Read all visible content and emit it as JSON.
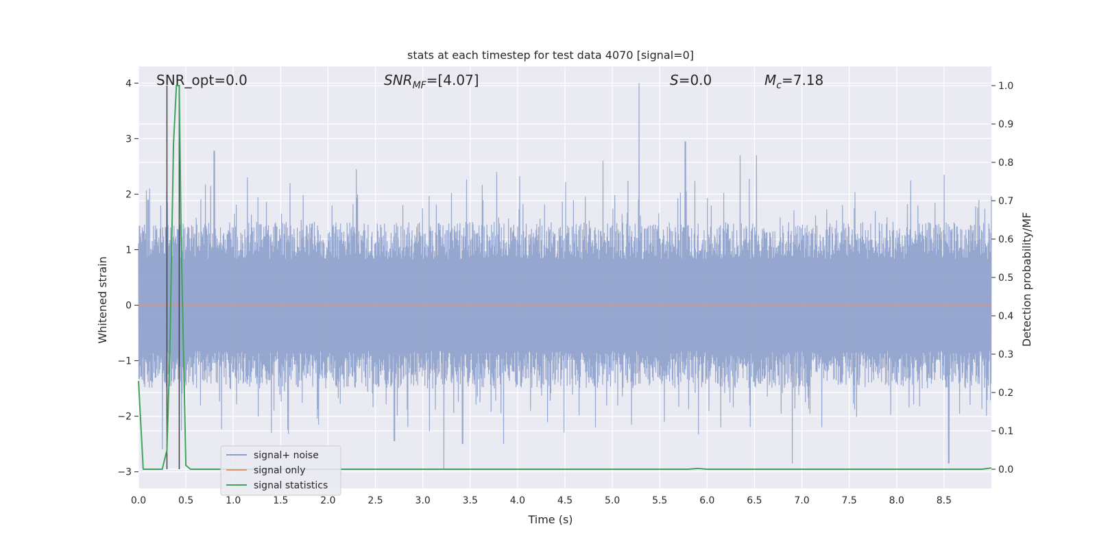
{
  "chart_data": {
    "type": "line",
    "title": "stats at each timestep for test data 4070 [signal=0]",
    "xlabel": "Time (s)",
    "ylabel_left": "Whitened strain",
    "ylabel_right": "Detection probability/MF",
    "xlim": [
      0.0,
      9.0
    ],
    "ylim_left": [
      -3.3,
      4.3
    ],
    "ylim_right": [
      -0.05,
      1.05
    ],
    "x_ticks": [
      "0.0",
      "0.5",
      "1.0",
      "1.5",
      "2.0",
      "2.5",
      "3.0",
      "3.5",
      "4.0",
      "4.5",
      "5.0",
      "5.5",
      "6.0",
      "6.5",
      "7.0",
      "7.5",
      "8.0",
      "8.5"
    ],
    "y_ticks_left": [
      "−3",
      "−2",
      "−1",
      "0",
      "1",
      "2",
      "3",
      "4"
    ],
    "y_ticks_right": [
      "0.0",
      "0.1",
      "0.2",
      "0.3",
      "0.4",
      "0.5",
      "0.6",
      "0.7",
      "0.8",
      "0.9",
      "1.0"
    ],
    "annotations": {
      "snr_opt": "SNR_opt=0.0",
      "snr_mf_main": "SNR",
      "snr_mf_sub": "MF",
      "snr_mf_value": "=[4.07]",
      "s_symbol": "S",
      "s_value": "=0.0",
      "mc_main": "M",
      "mc_sub": "c",
      "mc_value": "=7.18"
    },
    "legend": [
      "signal+ noise",
      "signal only",
      "signal statistics"
    ],
    "legend_placement": "lower-left",
    "colors": {
      "signal_noise": "#8da0cb",
      "signal_only": "#e5926b",
      "signal_statistics": "#3fa45b",
      "vertical_markers": "#404040",
      "axes_bg": "#eaeaf2",
      "grid": "#ffffff"
    },
    "series": [
      {
        "name": "signal+ noise",
        "axis": "left",
        "envelope_description_x": [
          0.0,
          0.5,
          1.0,
          1.5,
          2.0,
          2.5,
          3.0,
          3.5,
          4.0,
          4.5,
          5.0,
          5.5,
          6.0,
          6.5,
          7.0,
          7.5,
          8.0,
          8.5,
          9.0
        ],
        "typical_upper": 1.5,
        "typical_lower": -1.5,
        "peaks": [
          {
            "x": 0.1,
            "y": 1.9
          },
          {
            "x": 0.12,
            "y": 2.1
          },
          {
            "x": 0.3,
            "y": 2.05
          },
          {
            "x": 0.8,
            "y": 2.78
          },
          {
            "x": 1.15,
            "y": 2.3
          },
          {
            "x": 1.6,
            "y": 2.2
          },
          {
            "x": 2.3,
            "y": 2.45
          },
          {
            "x": 3.78,
            "y": 2.4
          },
          {
            "x": 4.9,
            "y": 2.6
          },
          {
            "x": 5.28,
            "y": 4.0
          },
          {
            "x": 5.77,
            "y": 2.95
          },
          {
            "x": 6.35,
            "y": 2.7
          },
          {
            "x": 6.52,
            "y": 2.7
          },
          {
            "x": 8.15,
            "y": 2.25
          },
          {
            "x": 8.5,
            "y": 2.35
          }
        ],
        "troughs": [
          {
            "x": 0.25,
            "y": -2.6
          },
          {
            "x": 1.4,
            "y": -2.3
          },
          {
            "x": 1.9,
            "y": -2.15
          },
          {
            "x": 2.7,
            "y": -2.45
          },
          {
            "x": 3.22,
            "y": -2.95
          },
          {
            "x": 3.42,
            "y": -2.5
          },
          {
            "x": 3.85,
            "y": -2.5
          },
          {
            "x": 5.2,
            "y": -2.15
          },
          {
            "x": 5.55,
            "y": -2.1
          },
          {
            "x": 6.9,
            "y": -2.85
          },
          {
            "x": 8.55,
            "y": -2.85
          }
        ]
      },
      {
        "name": "signal only",
        "axis": "left",
        "x": [
          0.0,
          9.0
        ],
        "y": [
          0.0,
          0.0
        ]
      },
      {
        "name": "signal statistics",
        "axis": "right",
        "x": [
          0.0,
          0.05,
          0.25,
          0.3,
          0.33,
          0.37,
          0.4,
          0.43,
          0.45,
          0.5,
          0.55,
          5.8,
          5.9,
          6.0,
          8.9,
          9.0
        ],
        "y": [
          0.23,
          0.0,
          0.0,
          0.05,
          0.3,
          0.85,
          1.0,
          1.0,
          0.6,
          0.01,
          0.0,
          0.0,
          0.002,
          0.0,
          0.0,
          0.003
        ]
      }
    ],
    "vertical_lines_x": [
      0.3,
      0.43
    ]
  }
}
